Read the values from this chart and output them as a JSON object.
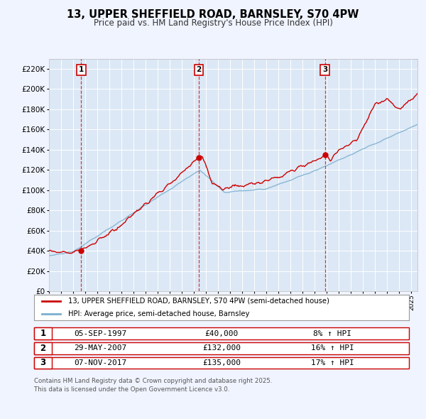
{
  "title": "13, UPPER SHEFFIELD ROAD, BARNSLEY, S70 4PW",
  "subtitle": "Price paid vs. HM Land Registry's House Price Index (HPI)",
  "title_fontsize": 10.5,
  "subtitle_fontsize": 8.5,
  "bg_color": "#f0f4ff",
  "plot_bg_color": "#dce8f5",
  "grid_color": "#ffffff",
  "red_line_color": "#cc0000",
  "blue_line_color": "#7aaecf",
  "marker_color": "#cc0000",
  "ylim": [
    0,
    230000
  ],
  "ytick_step": 20000,
  "sale_markers": [
    {
      "x_year": 1997.67,
      "y": 40000,
      "label": "1"
    },
    {
      "x_year": 2007.41,
      "y": 132000,
      "label": "2"
    },
    {
      "x_year": 2017.84,
      "y": 135000,
      "label": "3"
    }
  ],
  "legend_entries": [
    "13, UPPER SHEFFIELD ROAD, BARNSLEY, S70 4PW (semi-detached house)",
    "HPI: Average price, semi-detached house, Barnsley"
  ],
  "table_rows": [
    {
      "num": "1",
      "date": "05-SEP-1997",
      "price": "£40,000",
      "hpi": "8% ↑ HPI"
    },
    {
      "num": "2",
      "date": "29-MAY-2007",
      "price": "£132,000",
      "hpi": "16% ↑ HPI"
    },
    {
      "num": "3",
      "date": "07-NOV-2017",
      "price": "£135,000",
      "hpi": "17% ↑ HPI"
    }
  ],
  "footer": "Contains HM Land Registry data © Crown copyright and database right 2025.\nThis data is licensed under the Open Government Licence v3.0.",
  "xmin": 1995,
  "xmax": 2025.5
}
